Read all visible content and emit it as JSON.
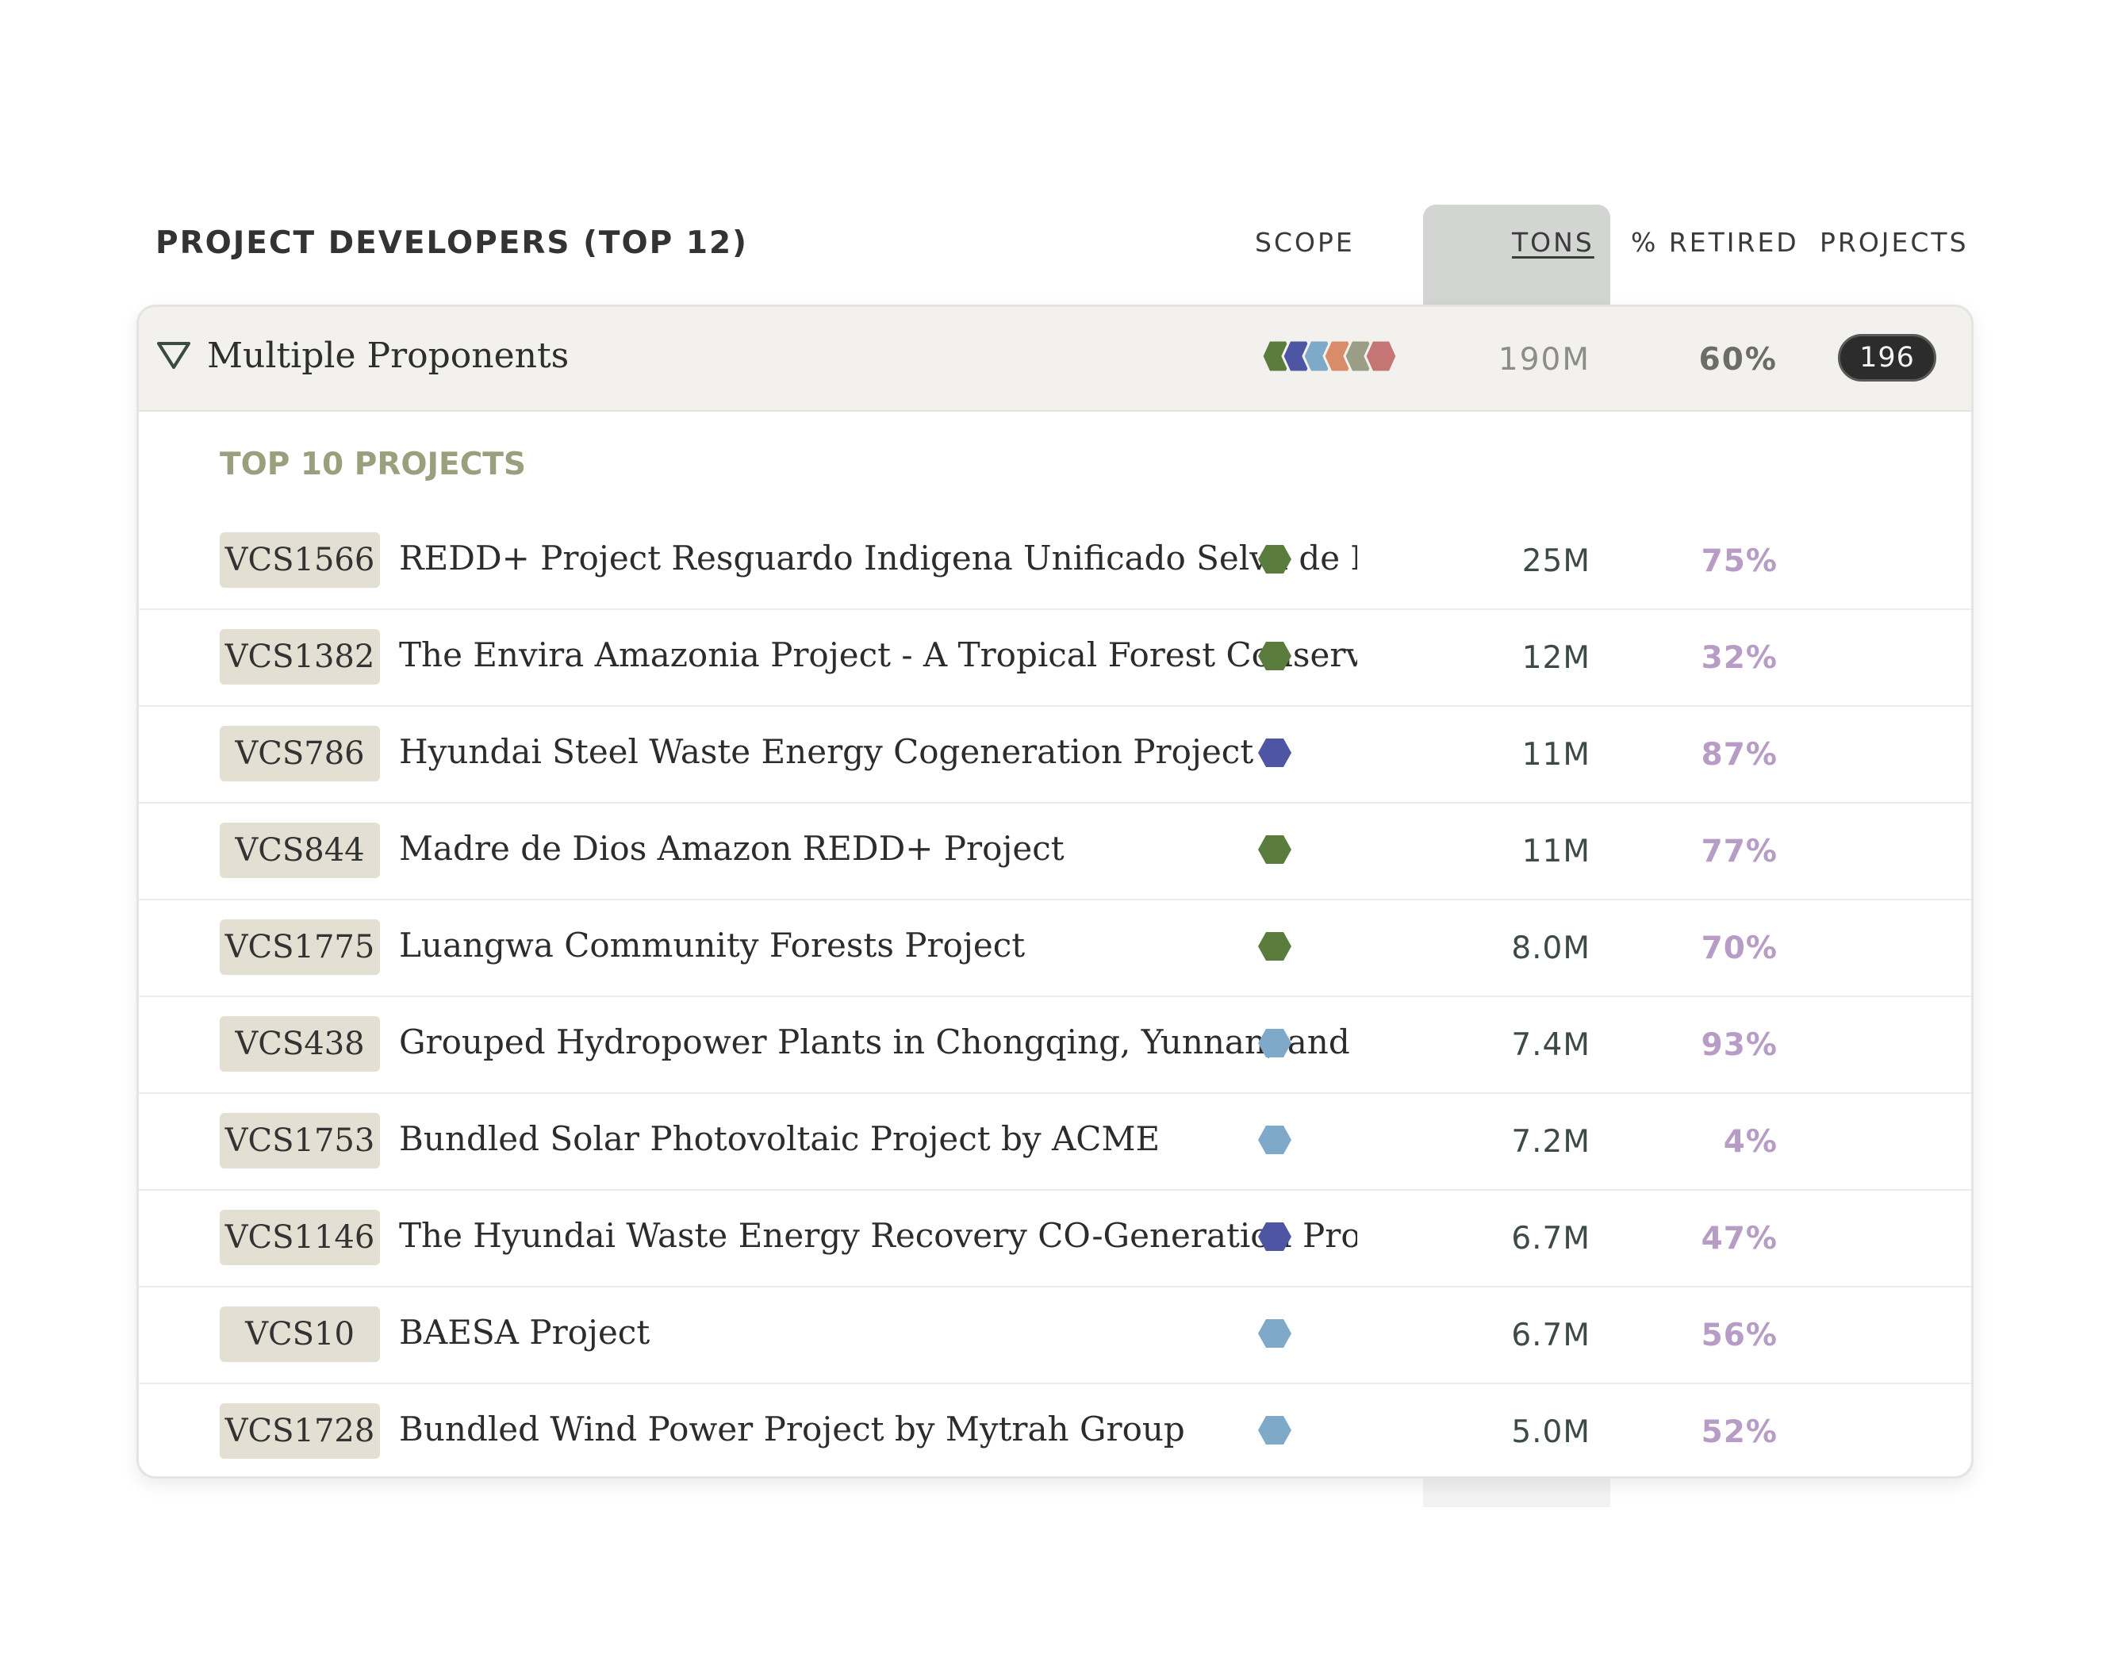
{
  "header": {
    "title": "PROJECT DEVELOPERS (TOP 12)",
    "columns": {
      "scope": "SCOPE",
      "tons": "TONS",
      "retired": "% RETIRED",
      "projects": "PROJECTS"
    }
  },
  "group": {
    "name": "Multiple Proponents",
    "tons": "190M",
    "retired": "60%",
    "projects": "196",
    "scope_icons": [
      "forest-scope-icon",
      "energy-scope-icon",
      "renewable-scope-icon",
      "agriculture-scope-icon",
      "other-scope-icon",
      "industrial-scope-icon"
    ],
    "scope_colors": [
      "#5a7d3e",
      "#4e55a3",
      "#7ea9c9",
      "#d98c69",
      "#9b9e86",
      "#c57574"
    ]
  },
  "subheading": "TOP 10 PROJECTS",
  "colors": {
    "forest": "#5a7d3e",
    "energy": "#4e55a3",
    "renewable": "#7ea9c9"
  },
  "projects": [
    {
      "code": "VCS1566",
      "name": "REDD+ Project Resguardo Indigena Unificado Selva de Mataven",
      "scope": "forest",
      "tons": "25M",
      "retired": "75%"
    },
    {
      "code": "VCS1382",
      "name": "The Envira Amazonia Project - A Tropical Forest Conservation Project in Acre, Brazil",
      "scope": "forest",
      "tons": "12M",
      "retired": "32%"
    },
    {
      "code": "VCS786",
      "name": "Hyundai Steel Waste Energy Cogeneration Project",
      "scope": "energy",
      "tons": "11M",
      "retired": "87%"
    },
    {
      "code": "VCS844",
      "name": "Madre de Dios Amazon REDD+ Project",
      "scope": "forest",
      "tons": "11M",
      "retired": "77%"
    },
    {
      "code": "VCS1775",
      "name": "Luangwa Community Forests Project",
      "scope": "forest",
      "tons": "8.0M",
      "retired": "70%"
    },
    {
      "code": "VCS438",
      "name": "Grouped Hydropower Plants in Chongqing, Yunnan, and Sichuan Provinces",
      "scope": "renewable",
      "tons": "7.4M",
      "retired": "93%"
    },
    {
      "code": "VCS1753",
      "name": "Bundled Solar Photovoltaic Project by ACME",
      "scope": "renewable",
      "tons": "7.2M",
      "retired": "4%"
    },
    {
      "code": "VCS1146",
      "name": "The Hyundai Waste Energy Recovery CO-Generation Project",
      "scope": "energy",
      "tons": "6.7M",
      "retired": "47%"
    },
    {
      "code": "VCS10",
      "name": "BAESA Project",
      "scope": "renewable",
      "tons": "6.7M",
      "retired": "56%"
    },
    {
      "code": "VCS1728",
      "name": "Bundled Wind Power Project by Mytrah Group",
      "scope": "renewable",
      "tons": "5.0M",
      "retired": "52%"
    }
  ]
}
